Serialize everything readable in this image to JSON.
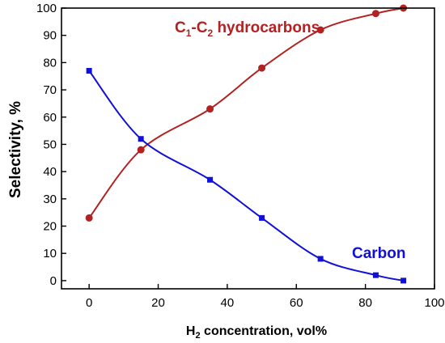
{
  "chart_data": {
    "type": "scatter",
    "xlabel": {
      "main": "H",
      "sub": "2",
      "rest": " concentration, vol%"
    },
    "ylabel": "Selectivity, %",
    "xlim": [
      -8,
      100
    ],
    "ylim": [
      -3,
      100
    ],
    "xticks": [
      0,
      20,
      40,
      60,
      80,
      100
    ],
    "yticks": [
      0,
      10,
      20,
      30,
      40,
      50,
      60,
      70,
      80,
      90,
      100
    ],
    "grid": false,
    "series": [
      {
        "name_parts": [
          "C",
          "1",
          "-C",
          "2",
          " hydrocarbons"
        ],
        "color": "#b22222",
        "marker": "circle",
        "x": [
          0,
          15,
          35,
          50,
          67,
          83,
          91
        ],
        "y": [
          23,
          48,
          63,
          78,
          92,
          98,
          100
        ]
      },
      {
        "name": "Carbon",
        "color": "#1010d8",
        "marker": "square",
        "x": [
          0,
          15,
          35,
          50,
          67,
          83,
          91
        ],
        "y": [
          77,
          52,
          37,
          23,
          8,
          2,
          0
        ]
      }
    ]
  }
}
